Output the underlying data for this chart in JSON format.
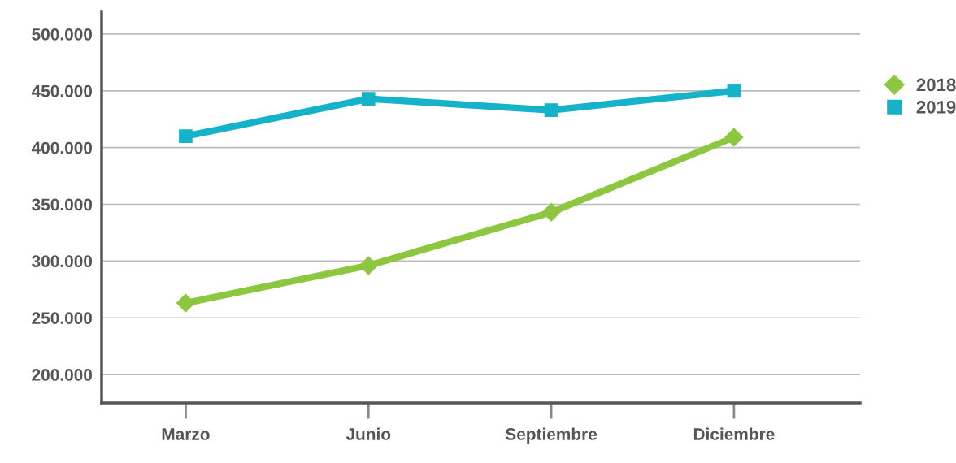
{
  "chart_data": {
    "type": "line",
    "categories": [
      "Marzo",
      "Junio",
      "Septiembre",
      "Diciembre"
    ],
    "series": [
      {
        "name": "2018",
        "color": "#8dc63f",
        "marker": "diamond",
        "values": [
          263000,
          296000,
          343000,
          409000
        ]
      },
      {
        "name": "2019",
        "color": "#16b2c9",
        "marker": "square",
        "values": [
          410000,
          443000,
          433000,
          450000
        ]
      }
    ],
    "ylim": [
      175000,
      520000
    ],
    "yticks": [
      {
        "value": 200000,
        "label": "200.000"
      },
      {
        "value": 250000,
        "label": "250.000"
      },
      {
        "value": 300000,
        "label": "300.000"
      },
      {
        "value": 350000,
        "label": "350.000"
      },
      {
        "value": 400000,
        "label": "400.000"
      },
      {
        "value": 450000,
        "label": "450.000"
      },
      {
        "value": 500000,
        "label": "500.000"
      }
    ],
    "grid": "y",
    "legend": "right",
    "line_style": "solid"
  }
}
